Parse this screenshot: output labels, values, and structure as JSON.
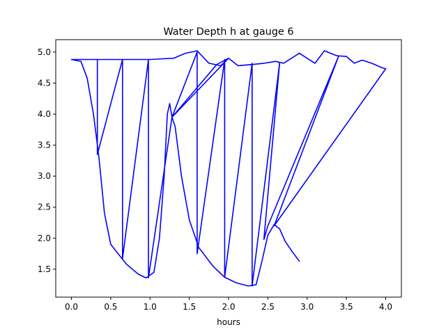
{
  "chart_data": {
    "type": "line",
    "title": "Water Depth h at gauge 6",
    "xlabel": "hours",
    "ylabel": "",
    "xlim": [
      -0.2,
      4.2
    ],
    "ylim": [
      1.05,
      5.2
    ],
    "grid": false,
    "x_ticks": [
      0.0,
      0.5,
      1.0,
      1.5,
      2.0,
      2.5,
      3.0,
      3.5,
      4.0
    ],
    "x_tick_labels": [
      "0.0",
      "0.5",
      "1.0",
      "1.5",
      "2.0",
      "2.5",
      "3.0",
      "3.5",
      "4.0"
    ],
    "y_ticks": [
      1.5,
      2.0,
      2.5,
      3.0,
      3.5,
      4.0,
      4.5,
      5.0
    ],
    "y_tick_labels": [
      "1.5",
      "2.0",
      "2.5",
      "3.0",
      "3.5",
      "4.0",
      "4.5",
      "5.0"
    ],
    "series": [
      {
        "color": "#0000ff",
        "points": [
          [
            0.0,
            4.88
          ],
          [
            0.33,
            4.88
          ],
          [
            0.33,
            3.35
          ],
          [
            0.65,
            4.88
          ],
          [
            0.65,
            1.67
          ],
          [
            0.98,
            4.88
          ],
          [
            0.98,
            1.36
          ],
          [
            1.28,
            3.95
          ],
          [
            1.6,
            5.0
          ],
          [
            1.6,
            1.75
          ],
          [
            1.95,
            4.88
          ],
          [
            1.95,
            1.37
          ],
          [
            2.3,
            4.82
          ],
          [
            2.3,
            1.23
          ],
          [
            2.65,
            4.83
          ],
          [
            2.45,
            1.98
          ],
          [
            2.5,
            2.2
          ],
          [
            3.4,
            4.93
          ],
          [
            2.58,
            2.2
          ],
          [
            4.0,
            4.73
          ],
          [
            4.0,
            4.73
          ],
          [
            3.95,
            4.75
          ],
          [
            3.82,
            4.82
          ],
          [
            3.7,
            4.87
          ],
          [
            3.6,
            4.82
          ],
          [
            3.5,
            4.93
          ],
          [
            3.38,
            4.94
          ],
          [
            3.22,
            5.02
          ],
          [
            3.1,
            4.82
          ],
          [
            2.9,
            4.98
          ],
          [
            2.7,
            4.82
          ],
          [
            2.6,
            4.85
          ],
          [
            2.45,
            4.82
          ],
          [
            2.3,
            4.8
          ],
          [
            2.12,
            4.78
          ],
          [
            2.0,
            4.9
          ],
          [
            1.85,
            4.8
          ],
          [
            1.28,
            3.95
          ],
          [
            1.25,
            4.17
          ],
          [
            1.22,
            4.0
          ],
          [
            1.18,
            3.0
          ],
          [
            1.12,
            2.0
          ],
          [
            1.05,
            1.45
          ],
          [
            0.95,
            1.36
          ],
          [
            0.85,
            1.42
          ],
          [
            0.7,
            1.58
          ],
          [
            0.5,
            1.9
          ],
          [
            0.42,
            2.4
          ],
          [
            0.35,
            3.3
          ],
          [
            0.28,
            4.0
          ],
          [
            0.2,
            4.58
          ],
          [
            0.12,
            4.85
          ],
          [
            0.0,
            4.88
          ],
          [
            0.05,
            4.88
          ],
          [
            0.3,
            4.88
          ],
          [
            1.0,
            4.88
          ],
          [
            1.3,
            4.9
          ],
          [
            1.45,
            4.98
          ],
          [
            1.6,
            5.02
          ],
          [
            1.75,
            4.82
          ],
          [
            1.9,
            4.78
          ],
          [
            2.0,
            4.9
          ],
          [
            1.28,
            3.95
          ],
          [
            1.32,
            3.8
          ],
          [
            1.4,
            3.0
          ],
          [
            1.5,
            2.3
          ],
          [
            1.62,
            1.85
          ],
          [
            1.8,
            1.55
          ],
          [
            1.95,
            1.37
          ],
          [
            2.1,
            1.28
          ],
          [
            2.25,
            1.23
          ],
          [
            2.35,
            1.25
          ],
          [
            2.42,
            1.6
          ],
          [
            2.5,
            2.05
          ],
          [
            2.58,
            2.22
          ],
          [
            2.65,
            2.15
          ],
          [
            2.72,
            1.95
          ],
          [
            2.8,
            1.8
          ],
          [
            2.9,
            1.63
          ]
        ]
      }
    ]
  }
}
